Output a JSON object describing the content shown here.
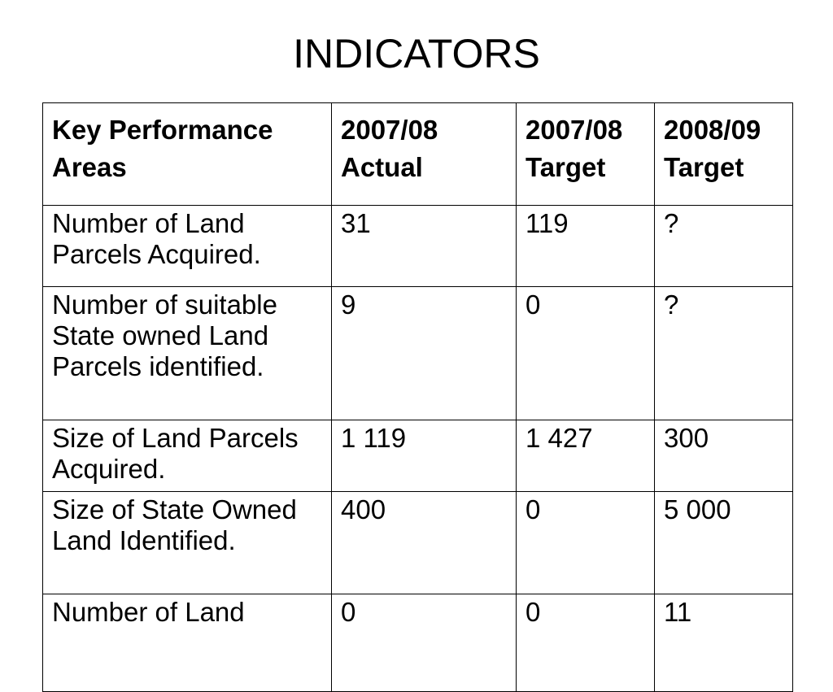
{
  "slide": {
    "title": "INDICATORS"
  },
  "table": {
    "headers": [
      "Key Performance Areas",
      "2007/08 Actual",
      "2007/08 Target",
      "2008/09 Target"
    ],
    "rows": [
      [
        "Number of Land Parcels Acquired.",
        "31",
        "119",
        "?"
      ],
      [
        "Number of suitable State owned Land Parcels identified.",
        "9",
        "0",
        "?"
      ],
      [
        "Size of Land Parcels Acquired.",
        "1 119",
        "1 427",
        "300"
      ],
      [
        "Size of State Owned Land Identified.",
        "400",
        "0",
        "5 000"
      ],
      [
        "Number of Land",
        "0",
        "0",
        "11"
      ]
    ]
  }
}
